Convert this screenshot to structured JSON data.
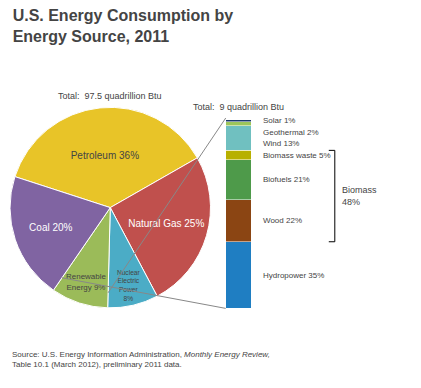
{
  "chart_data": [
    {
      "type": "pie",
      "title": "U.S. Energy Consumption by\nEnergy Source, 2011",
      "categories": [
        "Petroleum 36%",
        "Natural Gas 25%",
        "Nuclear\nElectric\nPower\n8%",
        "Renewable\nEnergy 9%",
        "Coal 20%"
      ],
      "values": [
        36,
        25,
        8,
        9,
        20
      ],
      "colors": [
        "#E8C428",
        "#C0504D",
        "#4BACC6",
        "#9BBB59",
        "#8064A2"
      ],
      "annotations": [
        "Total:  97.5 quadrillion Btu"
      ],
      "source": [
        "Source: U.S. Energy Information Administration, ",
        "Monthly Energy Review,",
        "Table 10.1 (March 2012), preliminary 2011 data."
      ]
    },
    {
      "type": "bar",
      "stacked": true,
      "categories": [
        null
      ],
      "series": [
        {
          "name": "Hydropower 35%",
          "color": "#1F7EC2",
          "values": [
            35
          ]
        },
        {
          "name": "Wood 22%",
          "color": "#8B4513",
          "values": [
            22
          ]
        },
        {
          "name": "Biofuels 21%",
          "color": "#4E9A4A",
          "values": [
            21
          ]
        },
        {
          "name": "Biomass waste 5%",
          "color": "#B8B000",
          "values": [
            5
          ]
        },
        {
          "name": "Wind 13%",
          "color": "#70C0C0",
          "values": [
            13
          ]
        },
        {
          "name": "Geothermal 2%",
          "color": "#9DC65A",
          "values": [
            2
          ]
        },
        {
          "name": "Solar 1%",
          "color": "#1A3A6A",
          "values": [
            1
          ]
        }
      ],
      "ylim": [
        0,
        100
      ],
      "tick_labels": false,
      "annotations": [
        "Total:  9 quadrillion Btu"
      ],
      "bracket": {
        "label": "Biomass\n48%",
        "from": 35,
        "to": 83
      }
    }
  ]
}
